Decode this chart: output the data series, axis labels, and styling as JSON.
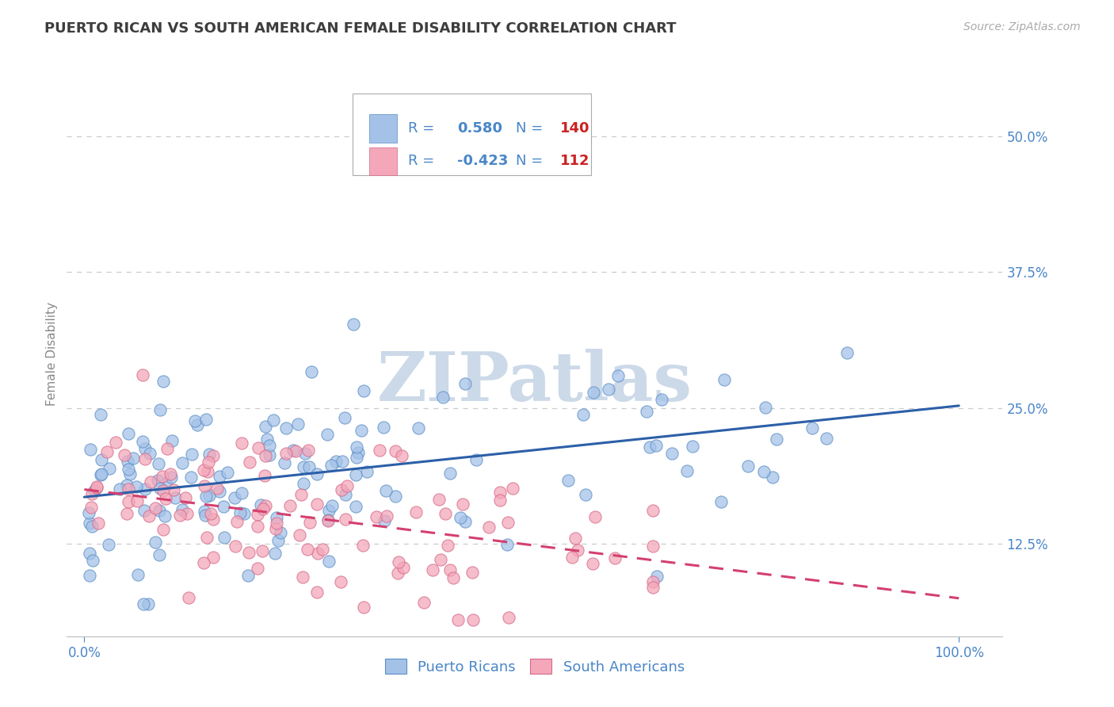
{
  "title": "PUERTO RICAN VS SOUTH AMERICAN FEMALE DISABILITY CORRELATION CHART",
  "source": "Source: ZipAtlas.com",
  "ylabel": "Female Disability",
  "x_ticks": [
    0.0,
    1.0
  ],
  "x_tick_labels": [
    "0.0%",
    "100.0%"
  ],
  "y_ticks": [
    0.125,
    0.25,
    0.375,
    0.5
  ],
  "y_tick_labels": [
    "12.5%",
    "25.0%",
    "37.5%",
    "50.0%"
  ],
  "xlim": [
    -0.02,
    1.05
  ],
  "ylim": [
    0.04,
    0.56
  ],
  "blue_R": 0.58,
  "blue_N": 140,
  "pink_R": -0.423,
  "pink_N": 112,
  "blue_color": "#a4c2e8",
  "pink_color": "#f4a7b9",
  "blue_edge_color": "#5b8ec5",
  "pink_edge_color": "#d46a8a",
  "blue_line_color": "#2c5fa8",
  "pink_line_color": "#d44070",
  "title_color": "#3d3d3d",
  "axis_label_color": "#888888",
  "tick_color": "#4a86c8",
  "source_color": "#aaaaaa",
  "legend_R_color": "#4a86c8",
  "legend_N_color": "#cc2222",
  "watermark_color": "#ccd9e8",
  "grid_color": "#cccccc",
  "background_color": "#ffffff",
  "blue_trend_y_start": 0.168,
  "blue_trend_y_end": 0.252,
  "pink_trend_y_start": 0.175,
  "pink_trend_y_end": 0.075
}
